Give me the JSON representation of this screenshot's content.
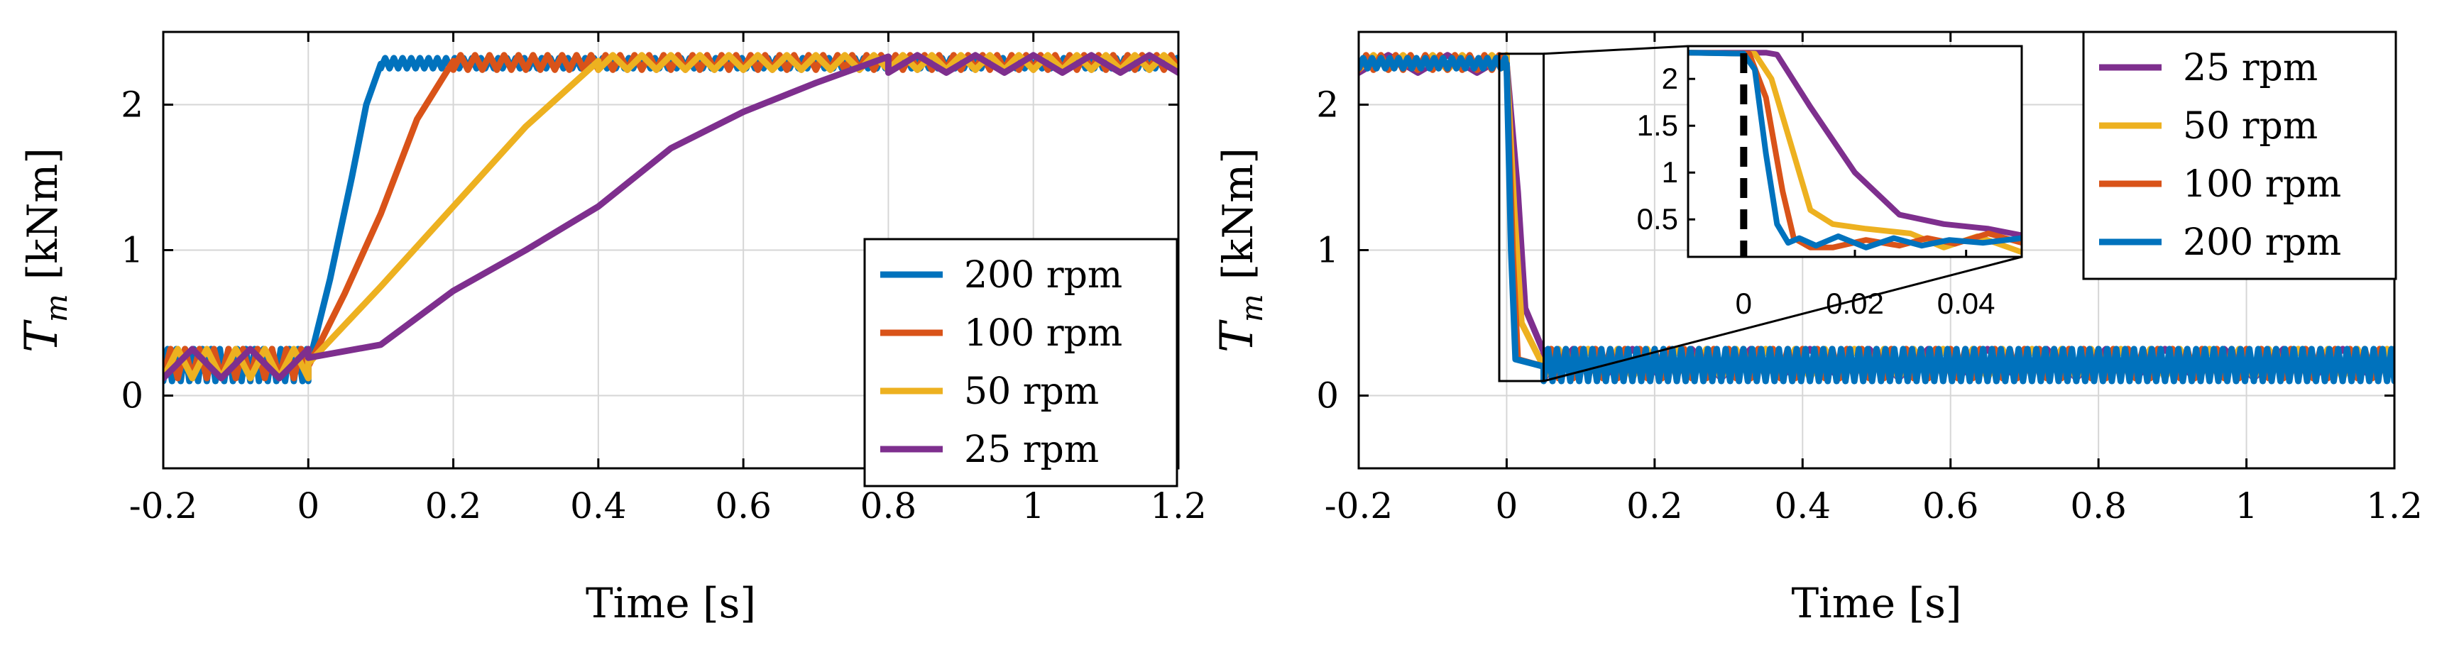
{
  "chart_data": [
    {
      "type": "line",
      "panel": "left",
      "xlabel": "Time [s]",
      "ylabel_symbol": "T",
      "ylabel_subscript": "m",
      "ylabel_unit": "[kNm]",
      "xlim": [
        -0.2,
        1.2
      ],
      "ylim": [
        -0.5,
        2.5
      ],
      "xticks": [
        -0.2,
        0,
        0.2,
        0.4,
        0.6,
        0.8,
        1,
        1.2
      ],
      "xticklabels": [
        "-0.2",
        "0",
        "0.2",
        "0.4",
        "0.6",
        "0.8",
        "1",
        "1.2"
      ],
      "yticks": [
        0,
        1,
        2
      ],
      "yticklabels": [
        "0",
        "1",
        "2"
      ],
      "grid": true,
      "legend_position": "bottom-right",
      "series": [
        {
          "name": "200 rpm",
          "color": "#0072BD",
          "ripple": {
            "low": 0.1,
            "high": 0.32,
            "period": 0.012
          },
          "ramp_start": 0,
          "ramp": [
            [
              0,
              0.2
            ],
            [
              0.03,
              0.8
            ],
            [
              0.06,
              1.5
            ],
            [
              0.08,
              2.0
            ],
            [
              0.1,
              2.28
            ]
          ],
          "ripple_after": {
            "low": 2.25,
            "high": 2.32,
            "period": 0.012
          }
        },
        {
          "name": "100 rpm",
          "color": "#D95319",
          "ripple": {
            "low": 0.12,
            "high": 0.32,
            "period": 0.02
          },
          "ramp_start": 0,
          "ramp": [
            [
              0,
              0.2
            ],
            [
              0.05,
              0.7
            ],
            [
              0.1,
              1.25
            ],
            [
              0.15,
              1.9
            ],
            [
              0.2,
              2.3
            ]
          ],
          "ripple_after": {
            "low": 2.24,
            "high": 2.34,
            "period": 0.02
          }
        },
        {
          "name": "50 rpm",
          "color": "#EDB120",
          "ripple": {
            "low": 0.12,
            "high": 0.32,
            "period": 0.04
          },
          "ramp_start": 0,
          "ramp": [
            [
              0,
              0.22
            ],
            [
              0.1,
              0.75
            ],
            [
              0.2,
              1.3
            ],
            [
              0.3,
              1.85
            ],
            [
              0.4,
              2.3
            ]
          ],
          "ripple_after": {
            "low": 2.24,
            "high": 2.34,
            "period": 0.04
          }
        },
        {
          "name": "25 rpm",
          "color": "#7E2F8E",
          "ripple": {
            "low": 0.12,
            "high": 0.32,
            "period": 0.08
          },
          "ramp_start": 0,
          "ramp": [
            [
              0,
              0.26
            ],
            [
              0.1,
              0.35
            ],
            [
              0.2,
              0.72
            ],
            [
              0.3,
              1.0
            ],
            [
              0.4,
              1.3
            ],
            [
              0.5,
              1.7
            ],
            [
              0.6,
              1.95
            ],
            [
              0.7,
              2.15
            ],
            [
              0.8,
              2.33
            ]
          ],
          "ripple_after": {
            "low": 2.22,
            "high": 2.34,
            "period": 0.08
          }
        }
      ]
    },
    {
      "type": "line",
      "panel": "right",
      "xlabel": "Time [s]",
      "ylabel_symbol": "T",
      "ylabel_subscript": "m",
      "ylabel_unit": "[kNm]",
      "xlim": [
        -0.2,
        1.2
      ],
      "ylim": [
        -0.5,
        2.5
      ],
      "xticks": [
        -0.2,
        0,
        0.2,
        0.4,
        0.6,
        0.8,
        1,
        1.2
      ],
      "xticklabels": [
        "-0.2",
        "0",
        "0.2",
        "0.4",
        "0.6",
        "0.8",
        "1",
        "1.2"
      ],
      "yticks": [
        0,
        1,
        2
      ],
      "yticklabels": [
        "0",
        "1",
        "2"
      ],
      "grid": true,
      "legend_position": "top-right",
      "series": [
        {
          "name": "25 rpm",
          "color": "#7E2F8E",
          "ripple_before": {
            "low": 2.22,
            "high": 2.34,
            "period": 0.08
          },
          "drop": [
            [
              0,
              2.28
            ],
            [
              0.015,
              1.4
            ],
            [
              0.025,
              0.6
            ],
            [
              0.05,
              0.3
            ]
          ],
          "ripple": {
            "low": 0.12,
            "high": 0.32,
            "period": 0.08
          }
        },
        {
          "name": "50 rpm",
          "color": "#EDB120",
          "ripple_before": {
            "low": 2.24,
            "high": 2.34,
            "period": 0.04
          },
          "drop": [
            [
              0,
              2.28
            ],
            [
              0.01,
              1.3
            ],
            [
              0.02,
              0.5
            ],
            [
              0.05,
              0.2
            ]
          ],
          "ripple": {
            "low": 0.12,
            "high": 0.32,
            "period": 0.04
          }
        },
        {
          "name": "100 rpm",
          "color": "#D95319",
          "ripple_before": {
            "low": 2.24,
            "high": 2.34,
            "period": 0.02
          },
          "drop": [
            [
              0,
              2.28
            ],
            [
              0.008,
              1.0
            ],
            [
              0.015,
              0.25
            ],
            [
              0.05,
              0.2
            ]
          ],
          "ripple": {
            "low": 0.12,
            "high": 0.32,
            "period": 0.02
          }
        },
        {
          "name": "200 rpm",
          "color": "#0072BD",
          "ripple_before": {
            "low": 2.25,
            "high": 2.32,
            "period": 0.012
          },
          "drop": [
            [
              0,
              2.28
            ],
            [
              0.006,
              1.0
            ],
            [
              0.012,
              0.25
            ],
            [
              0.05,
              0.2
            ]
          ],
          "ripple": {
            "low": 0.1,
            "high": 0.32,
            "period": 0.012
          }
        }
      ],
      "inset": {
        "xlim": [
          -0.01,
          0.05
        ],
        "ylim": [
          0.1,
          2.35
        ],
        "xticks": [
          0,
          0.02,
          0.04
        ],
        "xticklabels": [
          "0",
          "0.02",
          "0.04"
        ],
        "yticks": [
          0.5,
          1,
          1.5,
          2
        ],
        "yticklabels": [
          "0.5",
          "1",
          "1.5",
          "2"
        ],
        "series": [
          {
            "name": "25 rpm",
            "color": "#7E2F8E",
            "points": [
              [
                -0.01,
                2.28
              ],
              [
                0.004,
                2.28
              ],
              [
                0.006,
                2.26
              ],
              [
                0.012,
                1.7
              ],
              [
                0.02,
                1.0
              ],
              [
                0.028,
                0.55
              ],
              [
                0.036,
                0.45
              ],
              [
                0.044,
                0.4
              ],
              [
                0.05,
                0.33
              ]
            ]
          },
          {
            "name": "50 rpm",
            "color": "#EDB120",
            "points": [
              [
                -0.01,
                2.28
              ],
              [
                0.002,
                2.27
              ],
              [
                0.005,
                2.0
              ],
              [
                0.009,
                1.2
              ],
              [
                0.012,
                0.6
              ],
              [
                0.016,
                0.45
              ],
              [
                0.022,
                0.4
              ],
              [
                0.03,
                0.35
              ],
              [
                0.036,
                0.2
              ],
              [
                0.042,
                0.32
              ],
              [
                0.05,
                0.15
              ]
            ]
          },
          {
            "name": "100 rpm",
            "color": "#D95319",
            "points": [
              [
                -0.01,
                2.28
              ],
              [
                0.001,
                2.27
              ],
              [
                0.004,
                1.8
              ],
              [
                0.007,
                0.8
              ],
              [
                0.009,
                0.3
              ],
              [
                0.012,
                0.2
              ],
              [
                0.016,
                0.2
              ],
              [
                0.022,
                0.28
              ],
              [
                0.028,
                0.22
              ],
              [
                0.033,
                0.3
              ],
              [
                0.038,
                0.24
              ],
              [
                0.044,
                0.35
              ],
              [
                0.05,
                0.25
              ]
            ]
          },
          {
            "name": "200 rpm",
            "color": "#0072BD",
            "points": [
              [
                -0.01,
                2.28
              ],
              [
                0.0,
                2.27
              ],
              [
                0.002,
                2.1
              ],
              [
                0.004,
                1.2
              ],
              [
                0.006,
                0.45
              ],
              [
                0.008,
                0.25
              ],
              [
                0.01,
                0.3
              ],
              [
                0.013,
                0.22
              ],
              [
                0.017,
                0.32
              ],
              [
                0.022,
                0.2
              ],
              [
                0.027,
                0.3
              ],
              [
                0.032,
                0.22
              ],
              [
                0.037,
                0.28
              ],
              [
                0.043,
                0.25
              ],
              [
                0.05,
                0.3
              ]
            ]
          }
        ]
      }
    }
  ]
}
